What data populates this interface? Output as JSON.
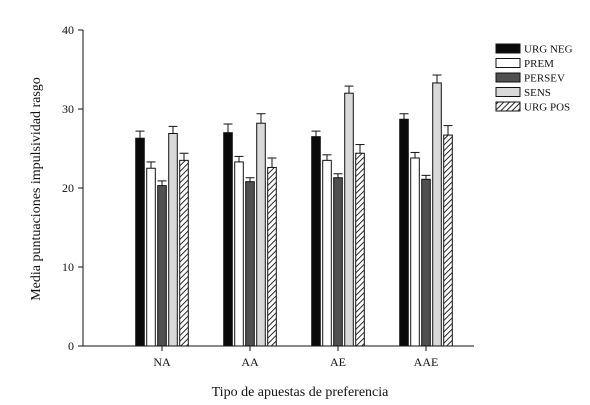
{
  "chart_data": {
    "type": "bar",
    "title": "",
    "xlabel": "Tipo de apuestas de preferencia",
    "ylabel": "Media puntuaciones impulsividad rasgo",
    "categories": [
      "NA",
      "AA",
      "AE",
      "AAE"
    ],
    "ylim": [
      0,
      40
    ],
    "yticks": [
      "0",
      "10",
      "20",
      "30",
      "40"
    ],
    "grid": false,
    "legend_position": "top-right",
    "series": [
      {
        "name": "URG NEG",
        "fill": "solid-black",
        "values": [
          26.3,
          27.0,
          26.5,
          28.7
        ],
        "errors": [
          0.9,
          1.1,
          0.7,
          0.7
        ]
      },
      {
        "name": "PREM",
        "fill": "white",
        "values": [
          22.5,
          23.3,
          23.5,
          23.8
        ],
        "errors": [
          0.8,
          0.7,
          0.7,
          0.7
        ]
      },
      {
        "name": "PERSEV",
        "fill": "dark-gray",
        "values": [
          20.3,
          20.8,
          21.3,
          21.1
        ],
        "errors": [
          0.6,
          0.5,
          0.5,
          0.5
        ]
      },
      {
        "name": "SENS",
        "fill": "light-gray",
        "values": [
          26.9,
          28.2,
          32.0,
          33.3
        ],
        "errors": [
          0.9,
          1.2,
          0.9,
          1.0
        ]
      },
      {
        "name": "URG POS",
        "fill": "hatched",
        "values": [
          23.5,
          22.6,
          24.4,
          26.7
        ],
        "errors": [
          0.9,
          1.2,
          1.1,
          1.2
        ]
      }
    ],
    "colors": {
      "solid-black": "#0a0a0a",
      "white": "#ffffff",
      "dark-gray": "#505050",
      "light-gray": "#d9d9d9",
      "outline": "#111111"
    }
  }
}
